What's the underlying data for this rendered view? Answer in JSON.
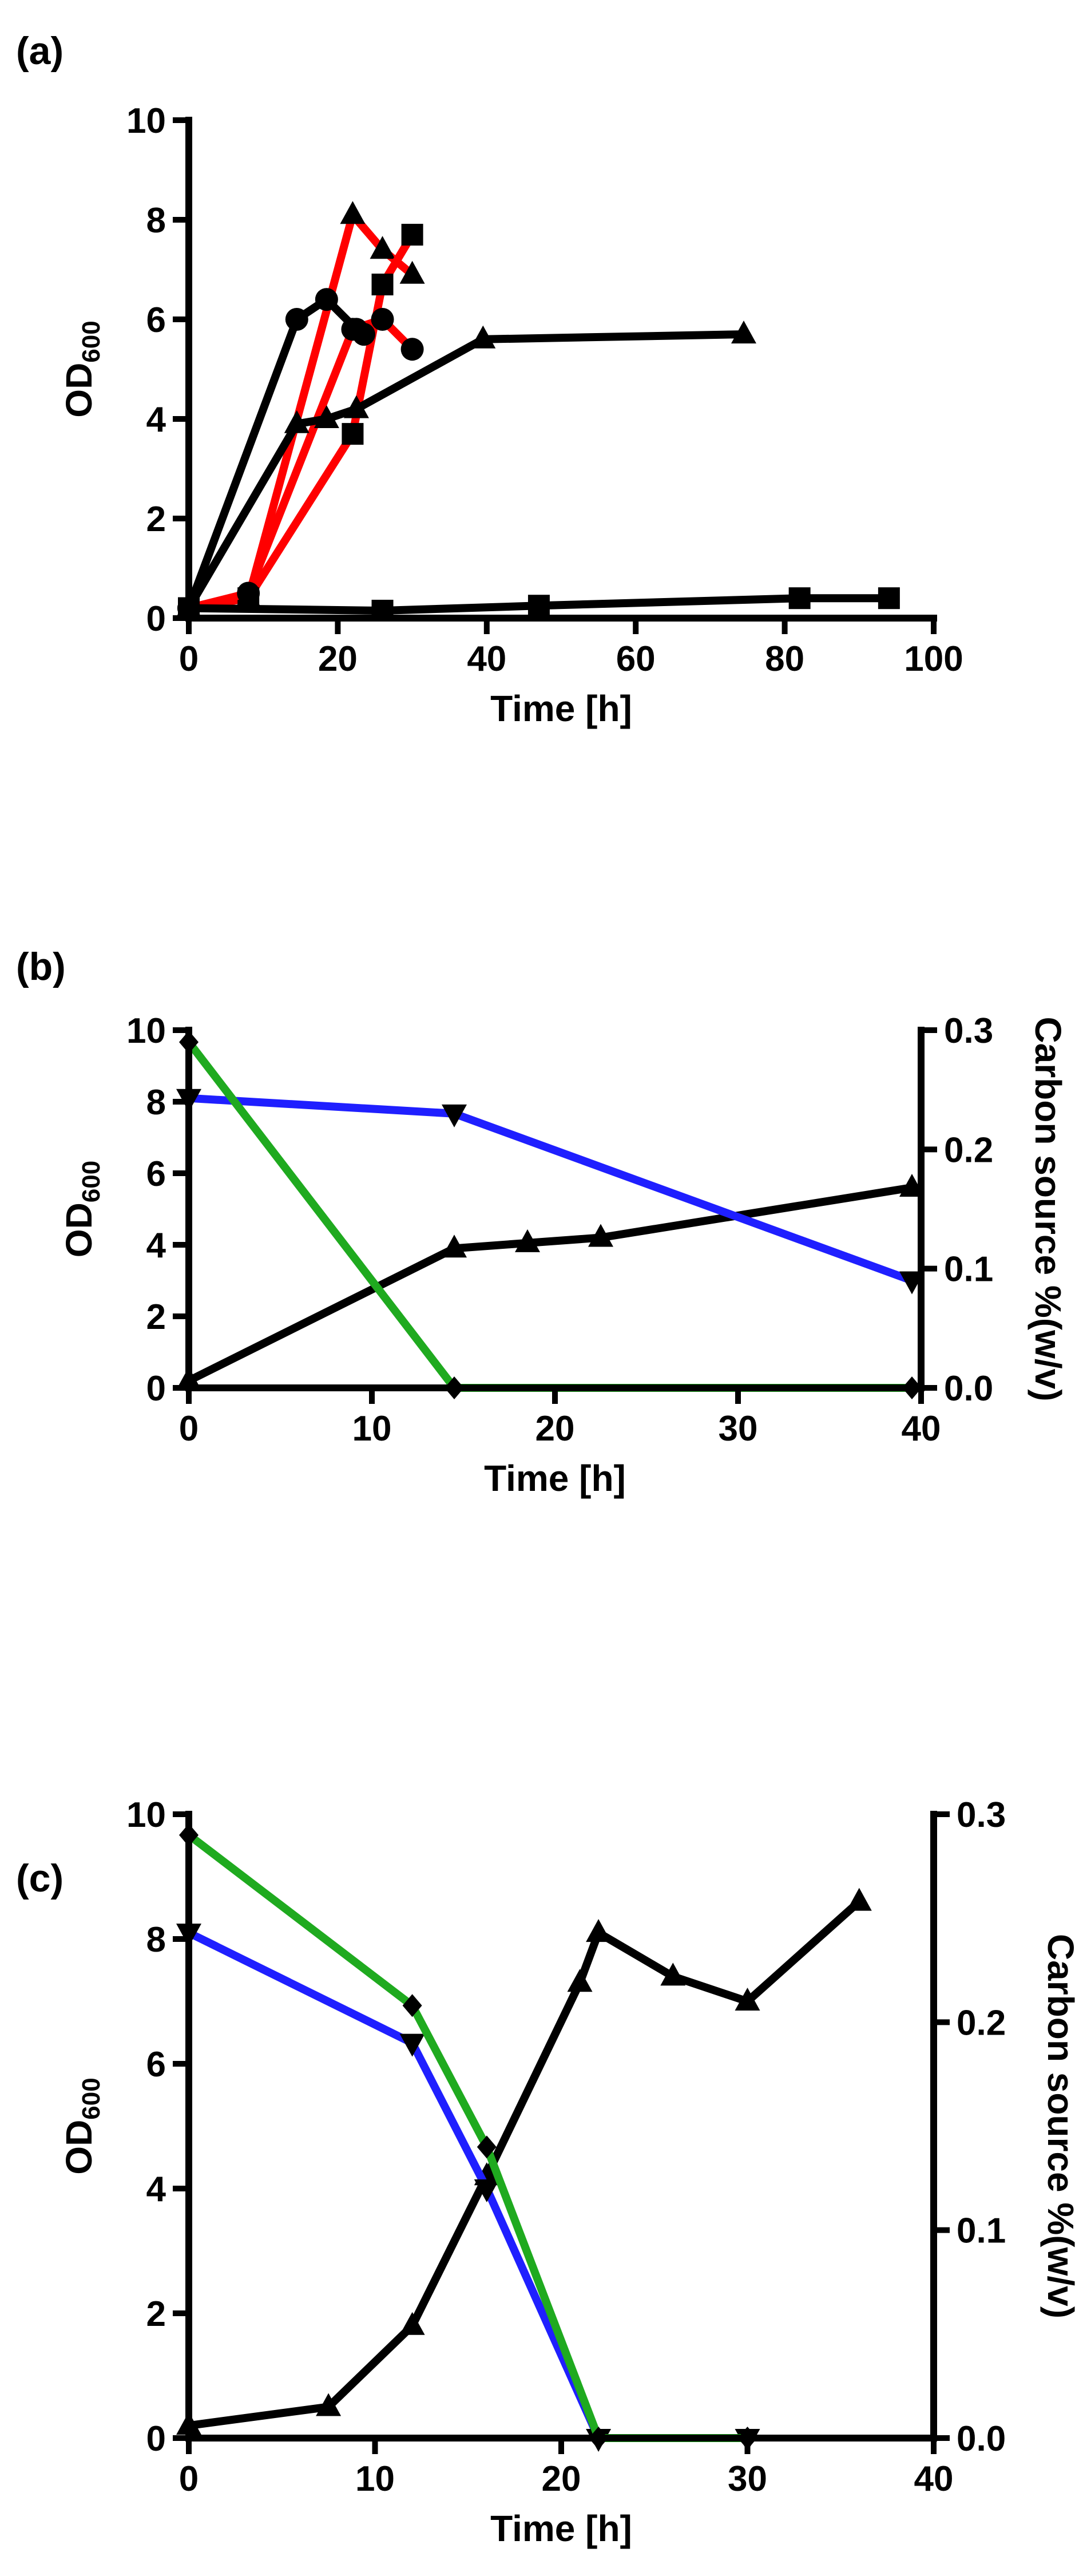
{
  "chart_data": [
    {
      "panel": "(a)",
      "type": "line",
      "xlabel": "Time [h]",
      "ylabel": "OD",
      "ylabel_sub": "600",
      "xlim": [
        0,
        100
      ],
      "ylim": [
        0,
        10
      ],
      "xticks": [
        "0",
        "20",
        "40",
        "60",
        "80",
        "100"
      ],
      "yticks": [
        "0",
        "2",
        "4",
        "6",
        "8",
        "10"
      ],
      "grid": false,
      "series": [
        {
          "name": "red-triangle",
          "color": "#ff0000",
          "marker": "triangle",
          "axis": "left",
          "x": [
            0,
            8,
            22,
            26,
            30
          ],
          "y": [
            0.2,
            0.4,
            8.1,
            7.4,
            6.9
          ]
        },
        {
          "name": "red-square",
          "color": "#ff0000",
          "marker": "square",
          "axis": "left",
          "x": [
            0,
            8,
            22,
            26,
            30
          ],
          "y": [
            0.2,
            0.4,
            3.7,
            6.7,
            7.7
          ]
        },
        {
          "name": "red-circle",
          "color": "#ff0000",
          "marker": "circle",
          "axis": "left",
          "x": [
            0,
            8,
            22,
            26,
            30
          ],
          "y": [
            0.2,
            0.5,
            5.8,
            6.0,
            5.4
          ]
        },
        {
          "name": "black-circle",
          "color": "#000000",
          "marker": "circle",
          "axis": "left",
          "x": [
            0,
            14.5,
            18.5,
            22.5,
            23.5
          ],
          "y": [
            0.2,
            6.0,
            6.4,
            5.8,
            5.7
          ]
        },
        {
          "name": "black-triangle",
          "color": "#000000",
          "marker": "triangle",
          "axis": "left",
          "x": [
            0,
            14.5,
            18.5,
            22.5,
            39.5,
            74.5
          ],
          "y": [
            0.2,
            3.9,
            4.0,
            4.2,
            5.6,
            5.7
          ]
        },
        {
          "name": "black-square",
          "color": "#000000",
          "marker": "square",
          "axis": "left",
          "x": [
            0,
            26,
            47,
            82,
            94
          ],
          "y": [
            0.2,
            0.15,
            0.25,
            0.4,
            0.4
          ]
        }
      ]
    },
    {
      "panel": "(b)",
      "type": "line",
      "xlabel": "Time [h]",
      "ylabel": "OD",
      "ylabel_sub": "600",
      "y2label": "Carbon source %(w/v)",
      "xlim": [
        0,
        40
      ],
      "ylim": [
        0,
        10
      ],
      "y2lim": [
        0,
        0.3
      ],
      "xticks": [
        "0",
        "10",
        "20",
        "30",
        "40"
      ],
      "yticks": [
        "0",
        "2",
        "4",
        "6",
        "8",
        "10"
      ],
      "y2ticks": [
        "0.0",
        "0.1",
        "0.2",
        "0.3"
      ],
      "grid": false,
      "series": [
        {
          "name": "OD600",
          "color": "#000000",
          "marker": "triangle",
          "axis": "left",
          "x": [
            0,
            14.5,
            18.5,
            22.5,
            39.5
          ],
          "y": [
            0.2,
            3.9,
            4.05,
            4.2,
            5.6
          ]
        },
        {
          "name": "carbon-source-blue",
          "color": "#1f1fff",
          "marker": "triangle-down",
          "axis": "right",
          "x": [
            0,
            14.5,
            39.5
          ],
          "y": [
            0.243,
            0.23,
            0.09
          ]
        },
        {
          "name": "carbon-source-green",
          "color": "#1faa1f",
          "marker": "diamond",
          "axis": "right",
          "x": [
            0,
            14.5,
            39.5
          ],
          "y": [
            0.29,
            0.0,
            0.0
          ]
        }
      ]
    },
    {
      "panel": "(c)",
      "type": "line",
      "xlabel": "Time [h]",
      "ylabel": "OD",
      "ylabel_sub": "600",
      "y2label": "Carbon source %(w/v)",
      "xlim": [
        0,
        40
      ],
      "ylim": [
        0,
        10
      ],
      "y2lim": [
        0,
        0.3
      ],
      "xticks": [
        "0",
        "10",
        "20",
        "30",
        "40"
      ],
      "yticks": [
        "0",
        "2",
        "4",
        "6",
        "8",
        "10"
      ],
      "y2ticks": [
        "0.0",
        "0.1",
        "0.2",
        "0.3"
      ],
      "grid": false,
      "series": [
        {
          "name": "OD600",
          "color": "#000000",
          "marker": "triangle",
          "axis": "left",
          "x": [
            0,
            7.5,
            12,
            16,
            21,
            22,
            26,
            30,
            36
          ],
          "y": [
            0.2,
            0.5,
            1.8,
            4.2,
            7.3,
            8.1,
            7.4,
            7.0,
            8.6
          ]
        },
        {
          "name": "carbon-source-blue",
          "color": "#1f1fff",
          "marker": "triangle-down",
          "axis": "right",
          "x": [
            0,
            12,
            16,
            22,
            30
          ],
          "y": [
            0.243,
            0.19,
            0.12,
            0.0,
            0.0
          ]
        },
        {
          "name": "carbon-source-green",
          "color": "#1faa1f",
          "marker": "diamond",
          "axis": "right",
          "x": [
            0,
            12,
            16,
            22,
            30
          ],
          "y": [
            0.29,
            0.208,
            0.14,
            0.0,
            0.0
          ]
        }
      ]
    }
  ]
}
